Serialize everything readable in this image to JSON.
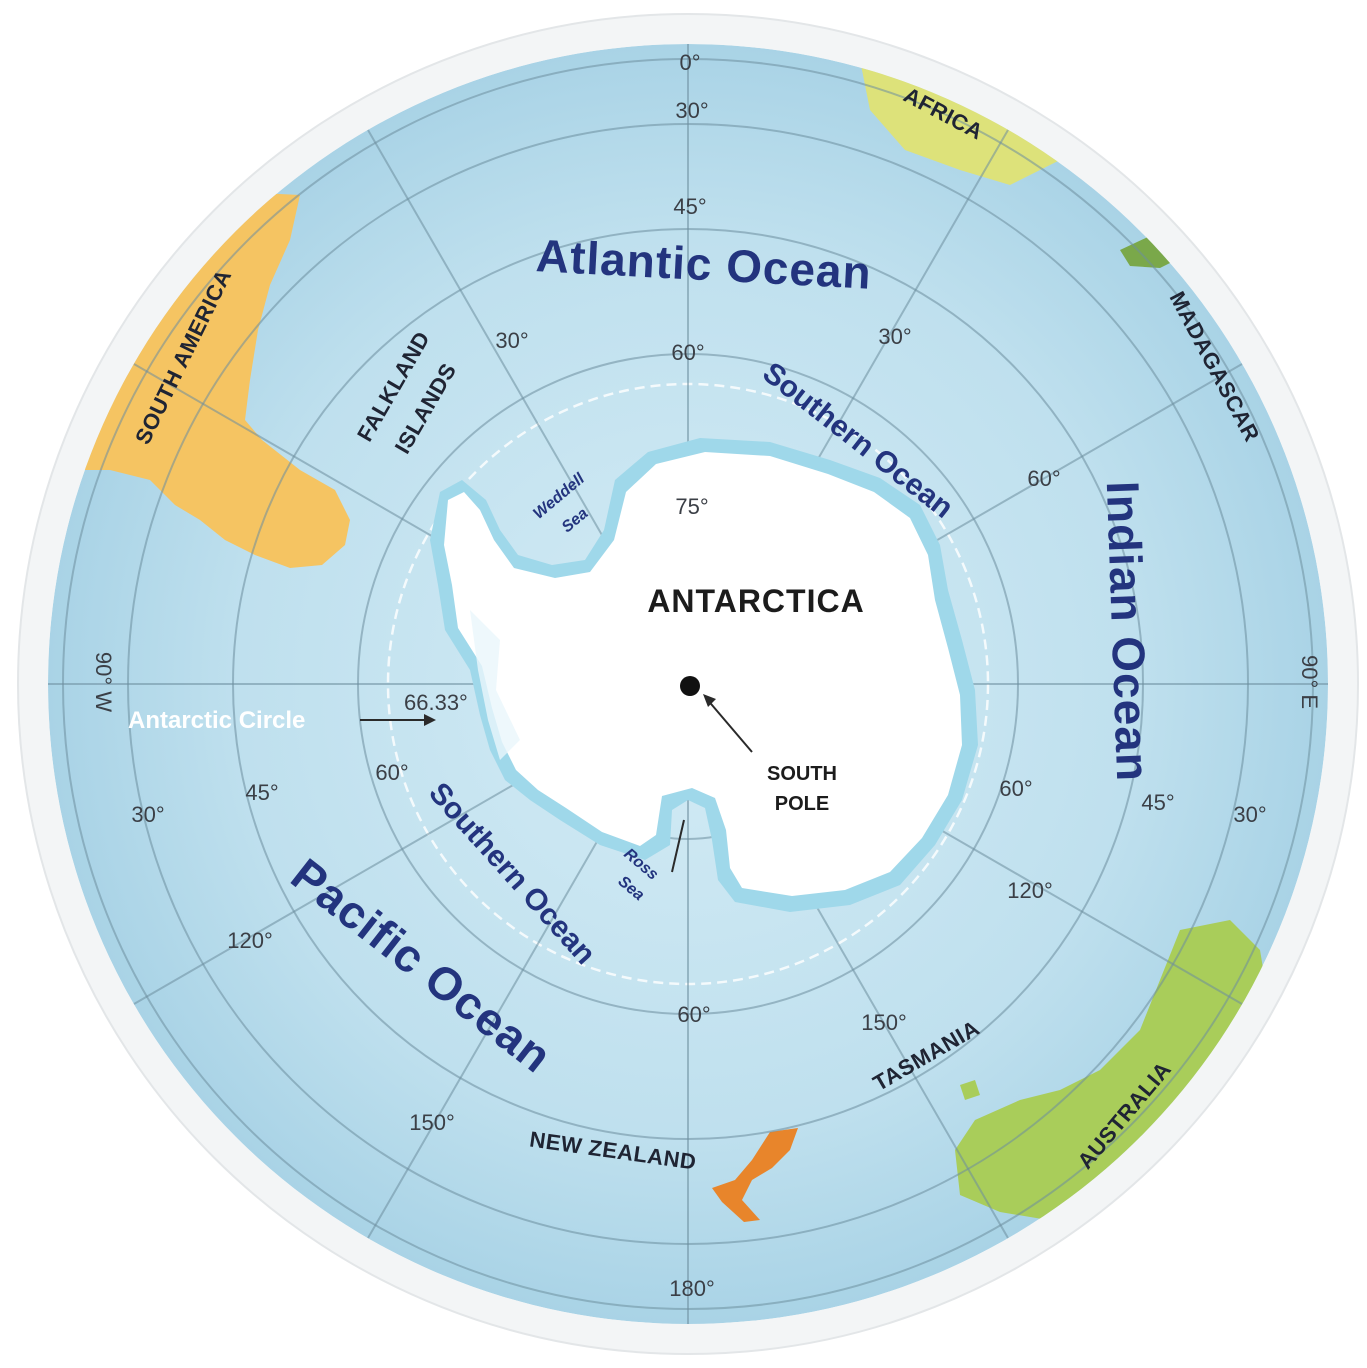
{
  "map": {
    "center_label": "ANTARCTICA",
    "pole_label_line1": "SOUTH",
    "pole_label_line2": "POLE",
    "antarctic_circle_label": "Antarctic Circle",
    "antarctic_circle_value": "66.33°",
    "oceans": {
      "atlantic": "Atlantic Ocean",
      "indian": "Indian Ocean",
      "pacific": "Pacific Ocean",
      "southern_top": "Southern Ocean",
      "southern_bottom": "Southern Ocean"
    },
    "seas": {
      "weddell_line1": "Weddell",
      "weddell_line2": "Sea",
      "ross_line1": "Ross",
      "ross_line2": "Sea"
    },
    "lands": {
      "africa": "AFRICA",
      "madagascar": "MADAGASCAR",
      "south_america": "SOUTH AMERICA",
      "falkland_line1": "FALKLAND",
      "falkland_line2": "ISLANDS",
      "australia": "AUSTRALIA",
      "tasmania": "TASMANIA",
      "new_zealand": "NEW ZEALAND"
    },
    "degrees": {
      "top_0": "0°",
      "top_30": "30°",
      "top_45": "45°",
      "top_60": "60°",
      "inner_75": "75°",
      "nw_30": "30°",
      "ne_30": "30°",
      "e_60": "60°",
      "w_60": "60°",
      "sw_45": "45°",
      "sw_30": "30°",
      "se_60": "60°",
      "se_45": "45°",
      "se_30": "30°",
      "se_120": "120°",
      "sw_120": "120°",
      "bottom_60": "60°",
      "se_150": "150°",
      "sw_150": "150°",
      "bottom_180": "180°",
      "west_90": "90° W",
      "east_90": "90° E"
    },
    "colors": {
      "ocean": "#b9dcec",
      "ocean_inner": "#c8e6f2",
      "ice": "#ffffff",
      "ice_edge": "#7fcde4",
      "africa": "#dde27a",
      "madagascar": "#7aa84a",
      "south_america": "#f5c462",
      "australia": "#a9cd5a",
      "new_zealand": "#e8852b",
      "ocean_text": "#23347e"
    }
  }
}
